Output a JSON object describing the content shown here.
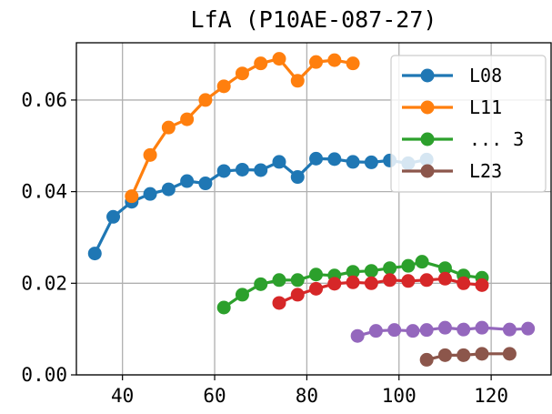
{
  "chart_data": {
    "type": "line",
    "title": "LfA (P10AE-087-27)",
    "xlabel": "",
    "ylabel": "",
    "xlim": [
      30,
      133
    ],
    "ylim": [
      0,
      0.0725
    ],
    "xticks": [
      40,
      60,
      80,
      100,
      120
    ],
    "xtick_labels": [
      "40",
      "60",
      "80",
      "100",
      "120"
    ],
    "yticks": [
      0,
      0.02,
      0.04,
      0.06
    ],
    "ytick_labels": [
      "0.00",
      "0.02",
      "0.04",
      "0.06"
    ],
    "grid": true,
    "legend_position": "top-right",
    "legend_entries": [
      "L08",
      "L11",
      "... 3",
      "L23"
    ],
    "series": [
      {
        "name": "L08",
        "color": "#1f77b4",
        "x": [
          34,
          38,
          42,
          46,
          50,
          54,
          58,
          62,
          66,
          70,
          74,
          78,
          82,
          86,
          90,
          94,
          98,
          102,
          106
        ],
        "y": [
          0.0265,
          0.0345,
          0.0378,
          0.0395,
          0.0405,
          0.0423,
          0.0418,
          0.0445,
          0.0448,
          0.0447,
          0.0465,
          0.0432,
          0.0472,
          0.0471,
          0.0465,
          0.0464,
          0.0468,
          0.0462,
          0.047
        ]
      },
      {
        "name": "L11",
        "color": "#ff7f0e",
        "x": [
          42,
          46,
          50,
          54,
          58,
          62,
          66,
          70,
          74,
          78,
          82,
          86,
          90
        ],
        "y": [
          0.039,
          0.048,
          0.054,
          0.0558,
          0.06,
          0.063,
          0.0658,
          0.068,
          0.069,
          0.0642,
          0.0683,
          0.0687,
          0.068
        ]
      },
      {
        "color": "#2ca02c",
        "x": [
          62,
          66,
          70,
          74,
          78,
          82,
          86,
          90,
          94,
          98,
          102,
          105,
          110,
          114,
          118
        ],
        "y": [
          0.0147,
          0.0175,
          0.0198,
          0.0207,
          0.0207,
          0.0219,
          0.0217,
          0.0225,
          0.0227,
          0.0233,
          0.0238,
          0.0247,
          0.0233,
          0.0217,
          0.0212
        ]
      },
      {
        "color": "#d62728",
        "x": [
          74,
          78,
          82,
          86,
          90,
          94,
          98,
          102,
          106,
          110,
          114,
          118
        ],
        "y": [
          0.0157,
          0.0175,
          0.0188,
          0.0199,
          0.0202,
          0.02,
          0.0207,
          0.0205,
          0.0207,
          0.021,
          0.02,
          0.0196
        ]
      },
      {
        "color": "#9467bd",
        "x": [
          91,
          95,
          99,
          103,
          106,
          110,
          114,
          118,
          124,
          128
        ],
        "y": [
          0.0085,
          0.0096,
          0.0098,
          0.0096,
          0.0098,
          0.0103,
          0.0099,
          0.0103,
          0.0099,
          0.0101
        ]
      },
      {
        "name": "L23",
        "color": "#8c564b",
        "x": [
          106,
          110,
          114,
          118,
          124
        ],
        "y": [
          0.0033,
          0.0043,
          0.0043,
          0.0046,
          0.0046
        ]
      }
    ]
  }
}
